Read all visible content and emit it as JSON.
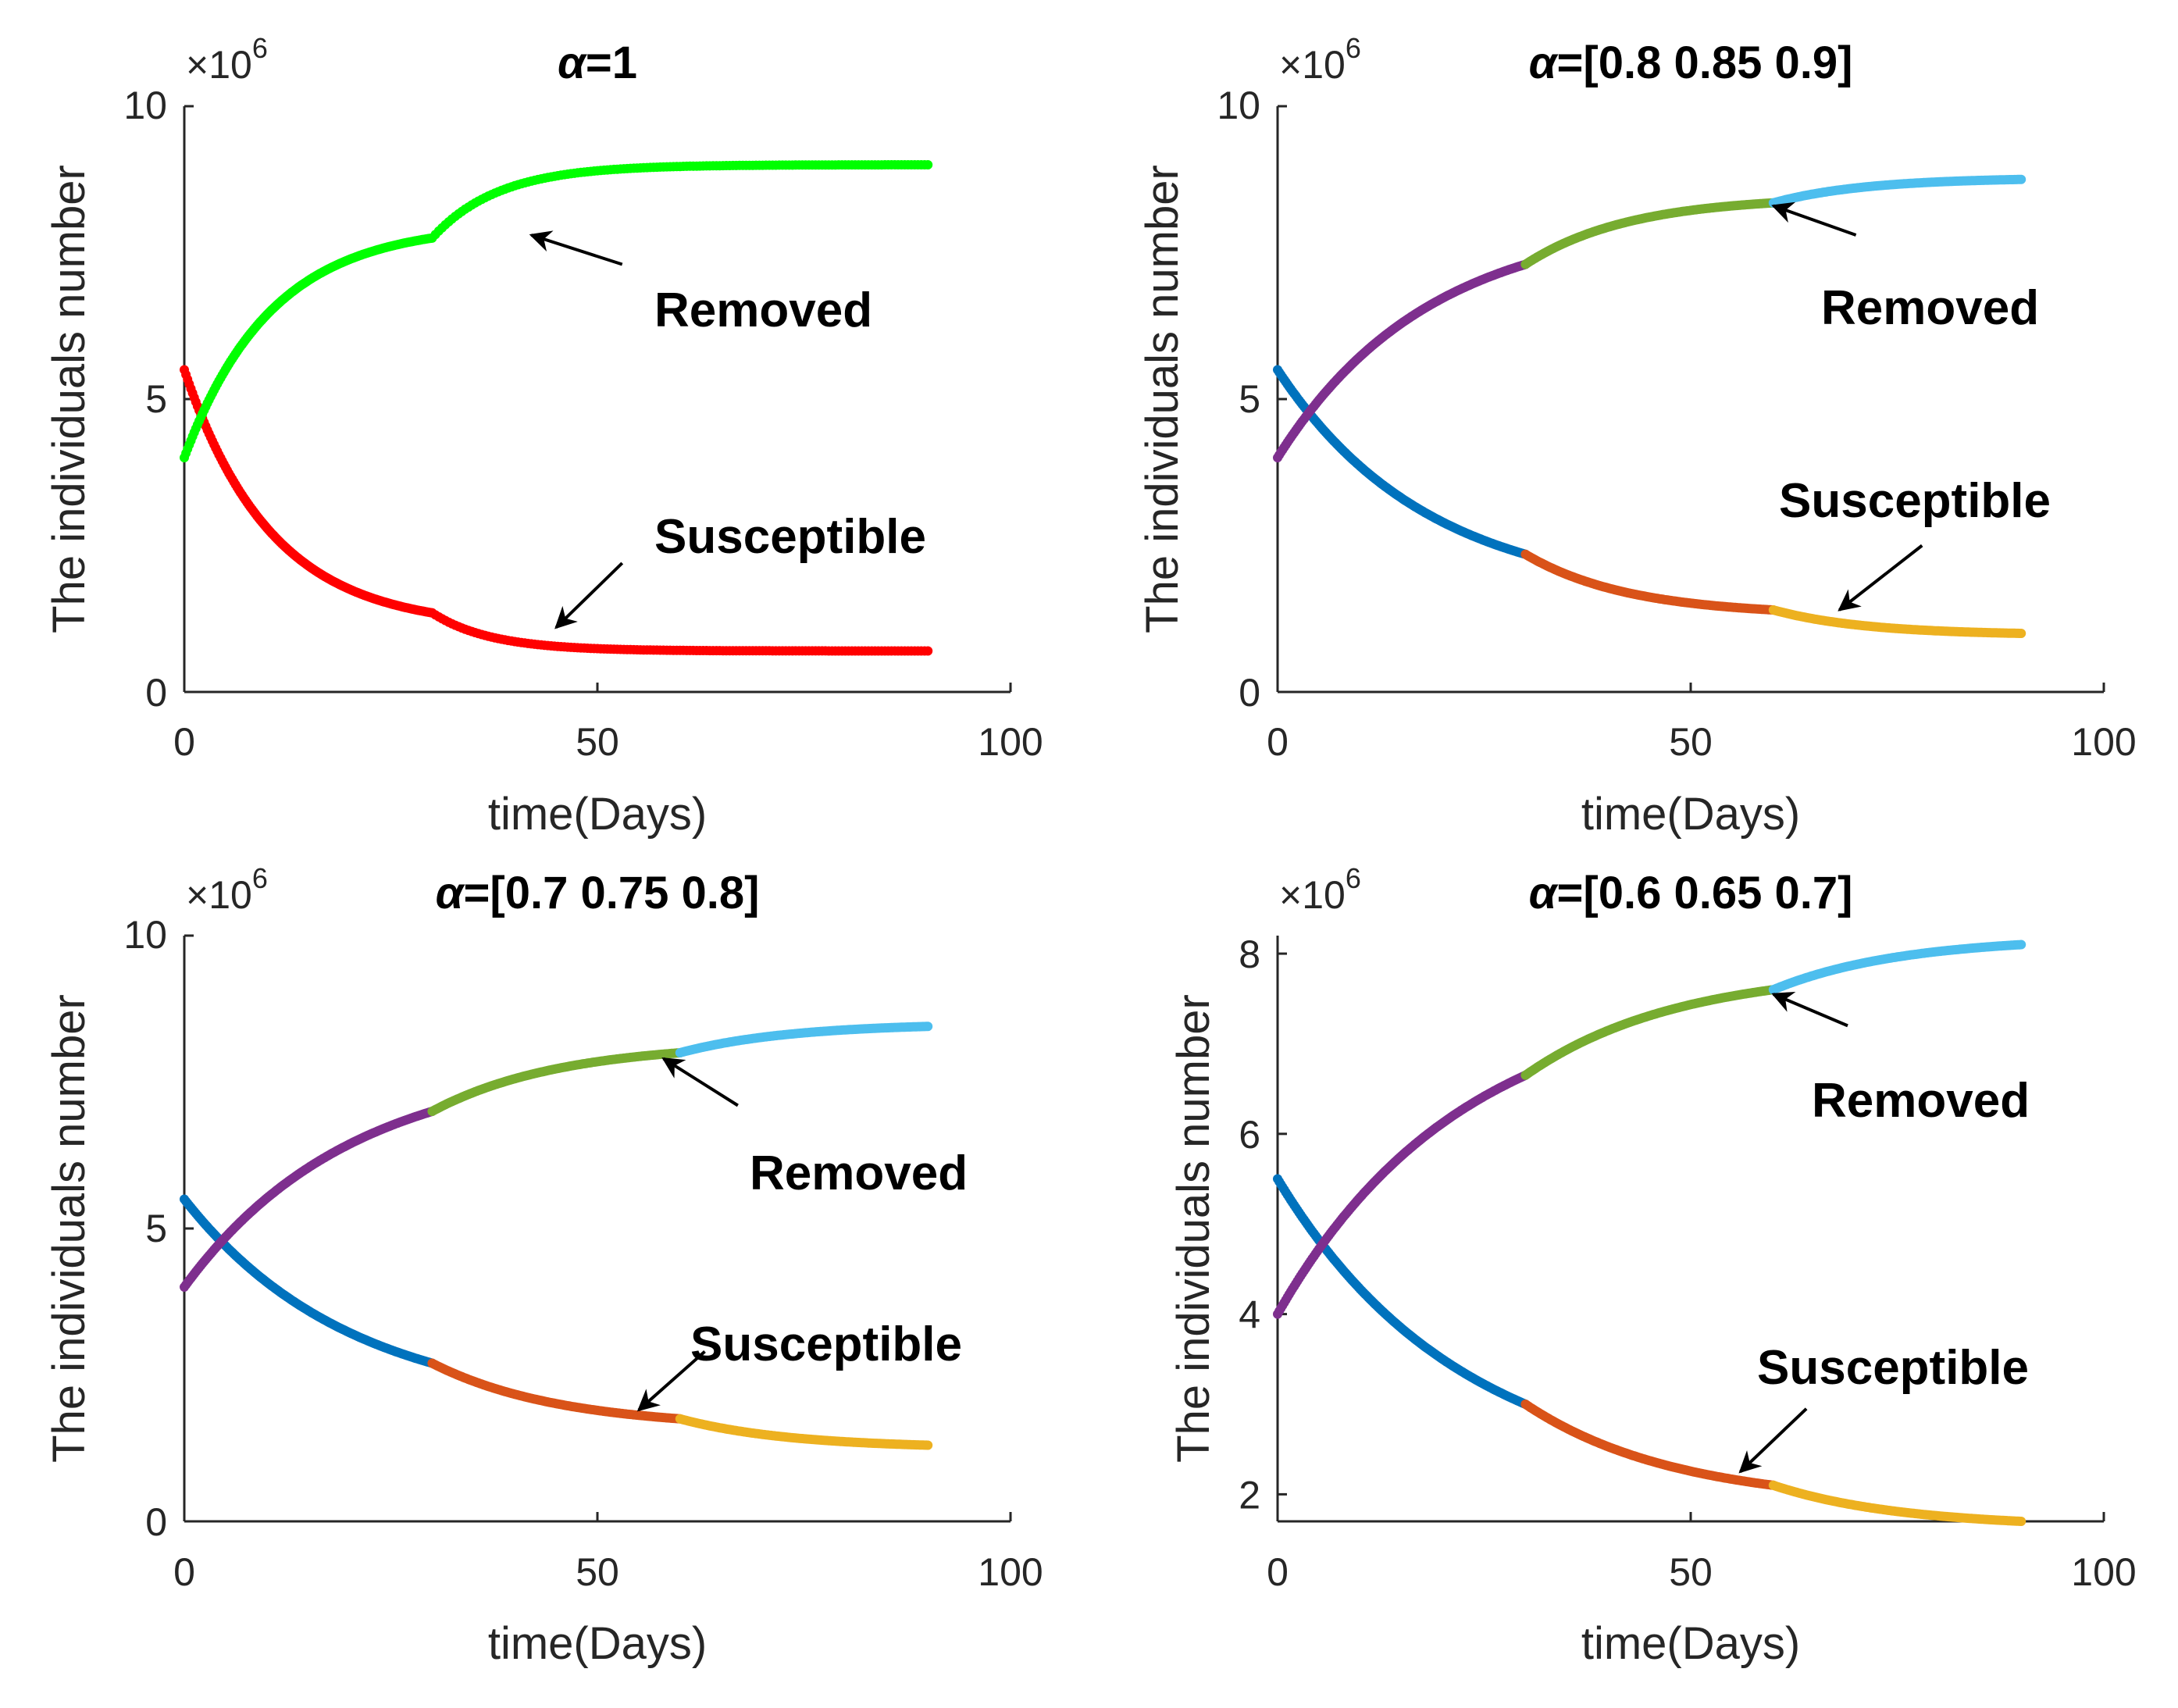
{
  "colors": {
    "blue": "#0072BD",
    "orange": "#D95319",
    "yellow": "#EDB120",
    "purple": "#7E2F8E",
    "olive": "#77AC30",
    "cyan": "#4DBEEE",
    "red": "#FF0000",
    "green": "#00FF00"
  },
  "chart_data": [
    {
      "type": "scatter",
      "title_greek": "α",
      "title_rest": "=1",
      "xlabel": "time(Days)",
      "ylabel": "The individuals number",
      "exponent_base": "×10",
      "exponent_power": "6",
      "xlim": [
        0,
        100
      ],
      "ylim": [
        0,
        10
      ],
      "xticks": [
        "0",
        "50",
        "100"
      ],
      "yticks": [
        "0",
        "5",
        "10"
      ],
      "ytick_values": [
        0,
        5,
        10
      ],
      "series": [
        {
          "name": "Susceptible",
          "segments": [
            {
              "t0": 0,
              "t1": 30,
              "y0": 5.5,
              "y1": 1.35,
              "shape": 0.95,
              "color": "red"
            },
            {
              "t0": 30,
              "t1": 90,
              "y0": 1.35,
              "y1": 0.7,
              "shape": 2.8,
              "color": "red"
            }
          ]
        },
        {
          "name": "Removed",
          "segments": [
            {
              "t0": 0,
              "t1": 30,
              "y0": 4.0,
              "y1": 7.75,
              "shape": 0.95,
              "color": "green"
            },
            {
              "t0": 30,
              "t1": 90,
              "y0": 7.75,
              "y1": 9.0,
              "shape": 2.5,
              "color": "green"
            }
          ]
        }
      ],
      "annotations": [
        {
          "text": "Removed",
          "x": 58,
          "y": 6.6,
          "arrow_from": [
            53,
            7.3
          ],
          "arrow_to": [
            42,
            7.8
          ]
        },
        {
          "text": "Susceptible",
          "x": 58,
          "y": 2.7,
          "arrow_from": [
            53,
            2.2
          ],
          "arrow_to": [
            45,
            1.1
          ]
        }
      ]
    },
    {
      "type": "scatter",
      "title_greek": "α",
      "title_rest": "=[0.8 0.85 0.9]",
      "xlabel": "time(Days)",
      "ylabel": "The individuals number",
      "exponent_base": "×10",
      "exponent_power": "6",
      "xlim": [
        0,
        100
      ],
      "ylim": [
        0,
        10
      ],
      "xticks": [
        "0",
        "50",
        "100"
      ],
      "yticks": [
        "0",
        "5",
        "10"
      ],
      "ytick_values": [
        0,
        5,
        10
      ],
      "series": [
        {
          "name": "Susceptible",
          "segments": [
            {
              "t0": 0,
              "t1": 30,
              "y0": 5.5,
              "y1": 2.35,
              "shape": 0.55,
              "color": "blue"
            },
            {
              "t0": 30,
              "t1": 60,
              "y0": 2.35,
              "y1": 1.4,
              "shape": 0.8,
              "color": "orange"
            },
            {
              "t0": 60,
              "t1": 90,
              "y0": 1.4,
              "y1": 1.0,
              "shape": 0.9,
              "color": "yellow"
            }
          ]
        },
        {
          "name": "Removed",
          "segments": [
            {
              "t0": 0,
              "t1": 30,
              "y0": 4.0,
              "y1": 7.3,
              "shape": 0.55,
              "color": "purple"
            },
            {
              "t0": 30,
              "t1": 60,
              "y0": 7.3,
              "y1": 8.35,
              "shape": 0.8,
              "color": "olive"
            },
            {
              "t0": 60,
              "t1": 90,
              "y0": 8.35,
              "y1": 8.75,
              "shape": 0.9,
              "color": "cyan"
            }
          ]
        }
      ],
      "annotations": [
        {
          "text": "Removed",
          "x": 65,
          "y": 6.6,
          "arrow_from": [
            70,
            7.8
          ],
          "arrow_to": [
            60,
            8.3
          ]
        },
        {
          "text": "Susceptible",
          "x": 63,
          "y": 3.2,
          "arrow_from": [
            78,
            2.5
          ],
          "arrow_to": [
            68,
            1.4
          ]
        }
      ]
    },
    {
      "type": "scatter",
      "title_greek": "α",
      "title_rest": "=[0.7 0.75 0.8]",
      "xlabel": "time(Days)",
      "ylabel": "The individuals number",
      "exponent_base": "×10",
      "exponent_power": "6",
      "xlim": [
        0,
        100
      ],
      "ylim": [
        0,
        10
      ],
      "xticks": [
        "0",
        "50",
        "100"
      ],
      "yticks": [
        "0",
        "5",
        "10"
      ],
      "ytick_values": [
        0,
        5,
        10
      ],
      "series": [
        {
          "name": "Susceptible",
          "segments": [
            {
              "t0": 0,
              "t1": 30,
              "y0": 5.5,
              "y1": 2.7,
              "shape": 0.5,
              "color": "blue"
            },
            {
              "t0": 30,
              "t1": 60,
              "y0": 2.7,
              "y1": 1.75,
              "shape": 0.65,
              "color": "orange"
            },
            {
              "t0": 60,
              "t1": 90,
              "y0": 1.75,
              "y1": 1.3,
              "shape": 0.75,
              "color": "yellow"
            }
          ]
        },
        {
          "name": "Removed",
          "segments": [
            {
              "t0": 0,
              "t1": 30,
              "y0": 4.0,
              "y1": 7.0,
              "shape": 0.5,
              "color": "purple"
            },
            {
              "t0": 30,
              "t1": 60,
              "y0": 7.0,
              "y1": 8.0,
              "shape": 0.65,
              "color": "olive"
            },
            {
              "t0": 60,
              "t1": 90,
              "y0": 8.0,
              "y1": 8.45,
              "shape": 0.75,
              "color": "cyan"
            }
          ]
        }
      ],
      "annotations": [
        {
          "text": "Removed",
          "x": 68,
          "y": 5.8,
          "arrow_from": [
            67,
            7.1
          ],
          "arrow_to": [
            58,
            7.9
          ]
        },
        {
          "text": "Susceptible",
          "x": 62,
          "y": 2.9,
          "arrow_from": [
            63,
            2.9
          ],
          "arrow_to": [
            55,
            1.9
          ]
        }
      ]
    },
    {
      "type": "scatter",
      "title_greek": "α",
      "title_rest": "=[0.6 0.65 0.7]",
      "xlabel": "time(Days)",
      "ylabel": "The individuals number",
      "exponent_base": "×10",
      "exponent_power": "6",
      "xlim": [
        0,
        100
      ],
      "ylim": [
        1.7,
        8.2
      ],
      "xticks": [
        "0",
        "50",
        "100"
      ],
      "yticks": [
        "2",
        "4",
        "6",
        "8"
      ],
      "ytick_values": [
        2,
        4,
        6,
        8
      ],
      "series": [
        {
          "name": "Susceptible",
          "segments": [
            {
              "t0": 0,
              "t1": 30,
              "y0": 5.5,
              "y1": 3.0,
              "shape": 0.45,
              "color": "blue"
            },
            {
              "t0": 30,
              "t1": 60,
              "y0": 3.0,
              "y1": 2.1,
              "shape": 0.55,
              "color": "orange"
            },
            {
              "t0": 60,
              "t1": 90,
              "y0": 2.1,
              "y1": 1.7,
              "shape": 0.65,
              "color": "yellow"
            }
          ]
        },
        {
          "name": "Removed",
          "segments": [
            {
              "t0": 0,
              "t1": 30,
              "y0": 4.0,
              "y1": 6.65,
              "shape": 0.45,
              "color": "purple"
            },
            {
              "t0": 30,
              "t1": 60,
              "y0": 6.65,
              "y1": 7.6,
              "shape": 0.55,
              "color": "olive"
            },
            {
              "t0": 60,
              "t1": 90,
              "y0": 7.6,
              "y1": 8.1,
              "shape": 0.65,
              "color": "cyan"
            }
          ]
        }
      ],
      "annotations": [
        {
          "text": "Removed",
          "x": 64,
          "y": 6.9,
          "arrow_from": [
            69,
            7.2
          ],
          "arrow_to": [
            60,
            7.55
          ]
        },
        {
          "text": "Susceptible",
          "x": 58,
          "y": 3.2,
          "arrow_from": [
            64,
            2.95
          ],
          "arrow_to": [
            56,
            2.25
          ]
        }
      ]
    }
  ]
}
